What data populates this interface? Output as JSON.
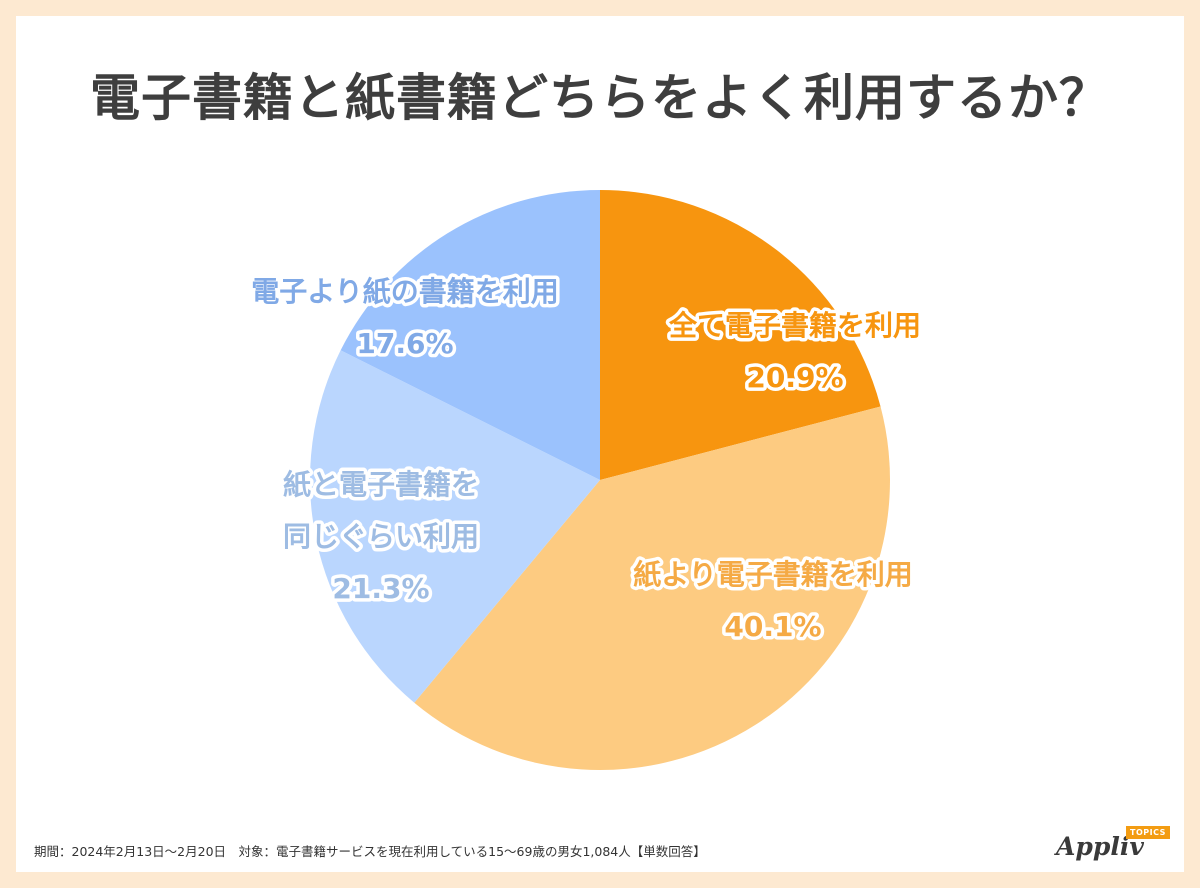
{
  "title": "電子書籍と紙書籍どちらをよく利用するか？",
  "footnote": "期間：2024年2月13日〜2月20日　対象：電子書籍サービスを現在利用している15〜69歳の男女1,084人【単数回答】",
  "logo": {
    "word": "Appliv",
    "tag": "TOPICS"
  },
  "chart_data": {
    "type": "pie",
    "title": "電子書籍と紙書籍どちらをよく利用するか？",
    "slices": [
      {
        "label_lines": [
          "全て電子書籍を利用"
        ],
        "value": 20.9,
        "value_text": "20.9%",
        "color": "#f7950f",
        "text_color": "#f7950f"
      },
      {
        "label_lines": [
          "紙より電子書籍を利用"
        ],
        "value": 40.1,
        "value_text": "40.1%",
        "color": "#fdcb81",
        "text_color": "#f5aa45"
      },
      {
        "label_lines": [
          "紙と電子書籍を",
          "同じぐらい利用"
        ],
        "value": 21.3,
        "value_text": "21.3%",
        "color": "#bad6fe",
        "text_color": "#9ebce3"
      },
      {
        "label_lines": [
          "電子より紙の書籍を利用"
        ],
        "value": 17.6,
        "value_text": "17.6%",
        "color": "#9bc2fd",
        "text_color": "#80a9e6"
      }
    ]
  }
}
